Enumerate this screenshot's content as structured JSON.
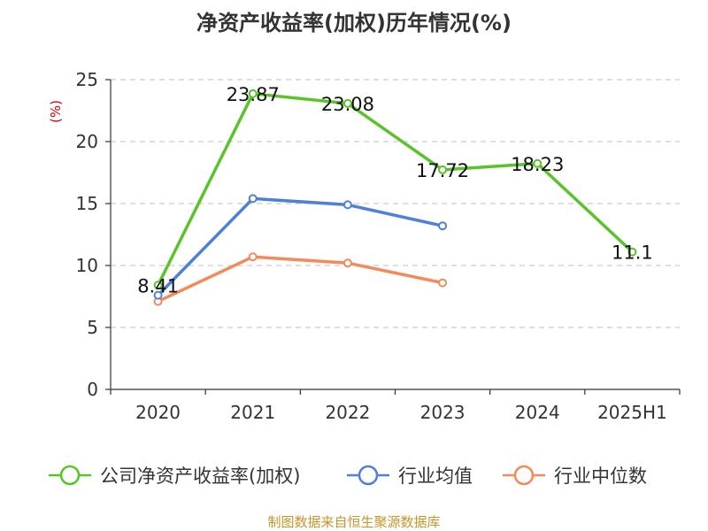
{
  "chart_data": {
    "type": "line",
    "title": "净资产收益率(加权)历年情况(%)",
    "ylabel": "(%)",
    "ylim": [
      0,
      25
    ],
    "yticks": [
      0,
      5,
      10,
      15,
      20,
      25
    ],
    "categories": [
      "2020",
      "2021",
      "2022",
      "2023",
      "2024",
      "2025H1"
    ],
    "grid": true,
    "legend_position": "bottom",
    "series": [
      {
        "name": "公司净资产收益率(加权)",
        "color": "#5ac32a",
        "values": [
          8.41,
          23.87,
          23.08,
          17.72,
          18.23,
          11.1
        ],
        "labels": [
          "8.41",
          "23.87",
          "23.08",
          "17.72",
          "18.23",
          "11.1"
        ],
        "show_labels": true
      },
      {
        "name": "行业均值",
        "color": "#4f7fd9",
        "values": [
          7.6,
          15.4,
          14.9,
          13.2,
          null,
          null
        ],
        "show_labels": false
      },
      {
        "name": "行业中位数",
        "color": "#f4895a",
        "values": [
          7.1,
          10.7,
          10.2,
          8.6,
          null,
          null
        ],
        "show_labels": false
      }
    ]
  },
  "source": "制图数据来自恒生聚源数据库"
}
